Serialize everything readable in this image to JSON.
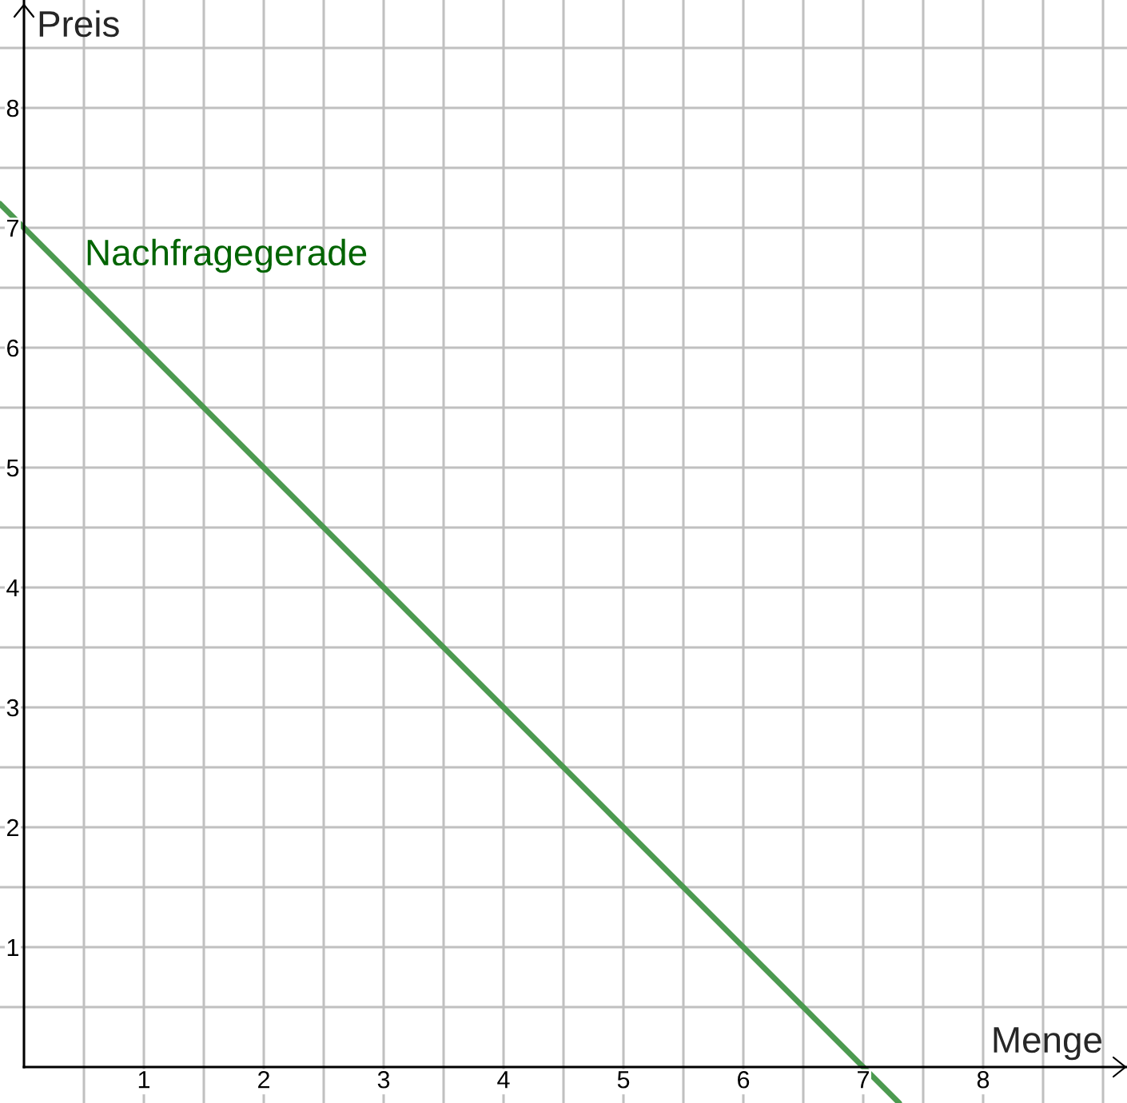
{
  "chart_data": {
    "type": "line",
    "xlabel": "Menge",
    "ylabel": "Preis",
    "x": [
      -0.2,
      0,
      7,
      7.3
    ],
    "series": [
      {
        "name": "Nachfragegerade",
        "color": "#4c9a50",
        "values": [
          7.2,
          7,
          0,
          -0.3
        ]
      }
    ],
    "xlim": [
      -0.2,
      9.2
    ],
    "ylim": [
      -0.3,
      8.9
    ],
    "xticks": [
      {
        "value": 0.5,
        "label": null
      },
      1,
      {
        "value": 1.5,
        "label": null
      },
      2,
      {
        "value": 2.5,
        "label": null
      },
      3,
      {
        "value": 3.5,
        "label": null
      },
      4,
      {
        "value": 4.5,
        "label": null
      },
      5,
      {
        "value": 5.5,
        "label": null
      },
      6,
      {
        "value": 6.5,
        "label": null
      },
      7,
      {
        "value": 7.5,
        "label": null
      },
      8,
      {
        "value": 8.5,
        "label": null
      },
      {
        "value": 9,
        "label": null
      }
    ],
    "yticks": [
      {
        "value": 0.5,
        "label": null
      },
      1,
      {
        "value": 1.5,
        "label": null
      },
      2,
      {
        "value": 2.5,
        "label": null
      },
      3,
      {
        "value": 3.5,
        "label": null
      },
      4,
      {
        "value": 4.5,
        "label": null
      },
      5,
      {
        "value": 5.5,
        "label": null
      },
      6,
      {
        "value": 6.5,
        "label": null
      },
      7,
      {
        "value": 7.5,
        "label": null
      },
      8,
      {
        "value": 8.5,
        "label": null
      }
    ],
    "grid": true
  }
}
